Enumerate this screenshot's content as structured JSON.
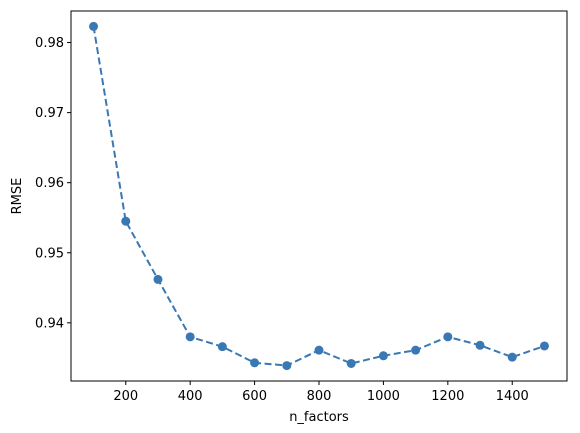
{
  "chart_data": {
    "type": "line",
    "title": "",
    "xlabel": "n_factors",
    "ylabel": "RMSE",
    "x": [
      100,
      200,
      300,
      400,
      500,
      600,
      700,
      800,
      900,
      1000,
      1100,
      1200,
      1300,
      1400,
      1500
    ],
    "series": [
      {
        "values": [
          0.9823,
          0.9545,
          0.9462,
          0.938,
          0.9366,
          0.9343,
          0.9339,
          0.9361,
          0.9342,
          0.9353,
          0.9361,
          0.938,
          0.9368,
          0.9351,
          0.9367
        ],
        "color": "#3a78b4",
        "line_style": "dashed",
        "marker": "circle"
      }
    ],
    "xlim": [
      30,
      1570
    ],
    "ylim": [
      0.9317,
      0.9845
    ],
    "x_ticks": [
      200,
      400,
      600,
      800,
      1000,
      1200,
      1400
    ],
    "x_tick_labels": [
      "200",
      "400",
      "600",
      "800",
      "1000",
      "1200",
      "1400"
    ],
    "y_ticks": [
      0.94,
      0.95,
      0.96,
      0.97,
      0.98
    ],
    "y_tick_labels": [
      "0.94",
      "0.95",
      "0.96",
      "0.97",
      "0.98"
    ],
    "grid": false,
    "legend": false
  }
}
